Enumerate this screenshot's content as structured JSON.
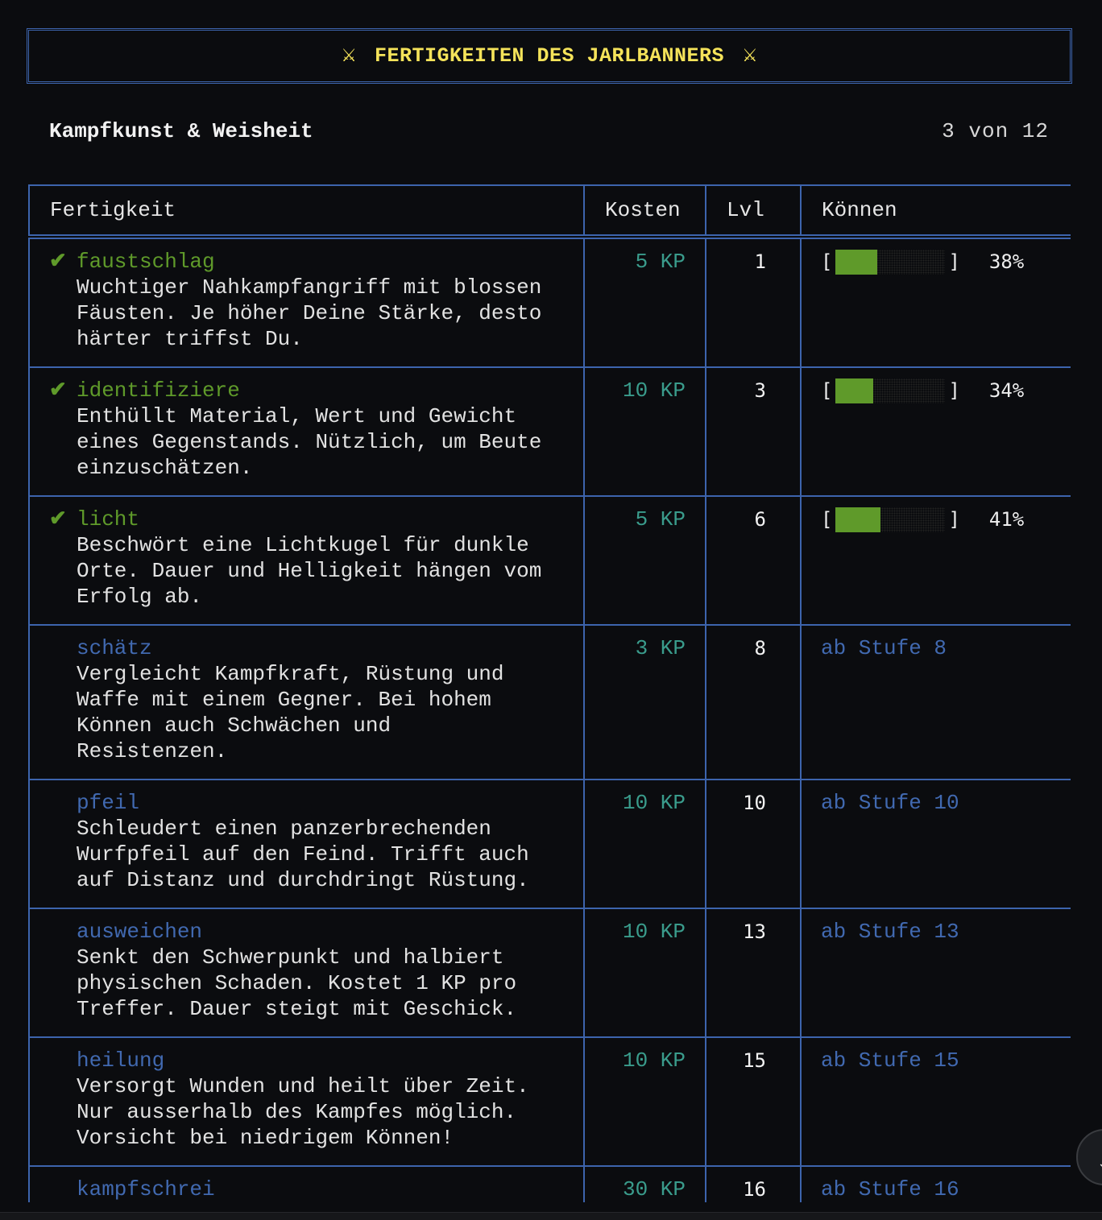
{
  "header": {
    "title": "FERTIGKEITEN DES JARLBANNERS",
    "icon": "crossed-swords-icon",
    "icon_glyph": "⚔"
  },
  "section": {
    "title": "Kampfkunst & Weisheit",
    "count": "3 von 12"
  },
  "table": {
    "columns": [
      "Fertigkeit",
      "Kosten",
      "Lvl",
      "Können"
    ],
    "rows": [
      {
        "learned": true,
        "check": "✔",
        "name": "faustschlag",
        "description": "Wuchtiger Nahkampfangriff mit blossen\nFäusten. Je höher Deine Stärke, desto\nhärter triffst Du.",
        "cost": "5 KP",
        "level": "1",
        "skill_percent": 38,
        "skill_label": "38%"
      },
      {
        "learned": true,
        "check": "✔",
        "name": "identifiziere",
        "description": "Enthüllt Material, Wert und Gewicht\neines Gegenstands. Nützlich, um Beute\neinzuschätzen.",
        "cost": "10 KP",
        "level": "3",
        "skill_percent": 34,
        "skill_label": "34%"
      },
      {
        "learned": true,
        "check": "✔",
        "name": "licht",
        "description": "Beschwört eine Lichtkugel für dunkle\nOrte. Dauer und Helligkeit hängen vom\nErfolg ab.",
        "cost": "5 KP",
        "level": "6",
        "skill_percent": 41,
        "skill_label": "41%"
      },
      {
        "learned": false,
        "name": "schätz",
        "description": "Vergleicht Kampfkraft, Rüstung und\nWaffe mit einem Gegner. Bei hohem\nKönnen auch Schwächen und\nResistenzen.",
        "cost": "3 KP",
        "level": "8",
        "unlock": "ab Stufe 8"
      },
      {
        "learned": false,
        "name": "pfeil",
        "description": "Schleudert einen panzerbrechenden\nWurfpfeil auf den Feind. Trifft auch\nauf Distanz und durchdringt Rüstung.",
        "cost": "10 KP",
        "level": "10",
        "unlock": "ab Stufe 10"
      },
      {
        "learned": false,
        "name": "ausweichen",
        "description": "Senkt den Schwerpunkt und halbiert\nphysischen Schaden. Kostet 1 KP pro\nTreffer. Dauer steigt mit Geschick.",
        "cost": "10 KP",
        "level": "13",
        "unlock": "ab Stufe 13"
      },
      {
        "learned": false,
        "name": "heilung",
        "description": "Versorgt Wunden und heilt über Zeit.\nNur ausserhalb des Kampfes möglich.\nVorsicht bei niedrigem Können!",
        "cost": "10 KP",
        "level": "15",
        "unlock": "ab Stufe 15"
      },
      {
        "learned": false,
        "name": "kampfschrei",
        "description": "",
        "cost": "30 KP",
        "level": "16",
        "unlock": "ab Stufe 16"
      }
    ]
  },
  "colors": {
    "accent": "#f5e35a",
    "border": "#3d64ad",
    "learned": "#5f9a2a",
    "locked": "#4169b0",
    "cost": "#3a9c8c",
    "background": "#0b0c0f"
  },
  "scroll_button": {
    "icon": "chevron-down-icon"
  }
}
